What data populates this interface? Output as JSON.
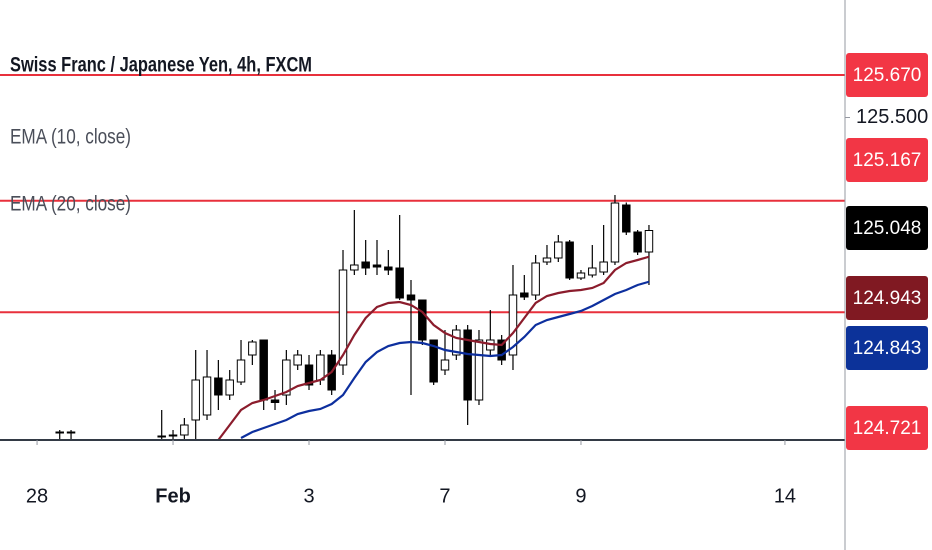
{
  "chart_data": {
    "type": "candlestick",
    "title": "Swiss Franc / Japanese Yen, 4h, FXCM",
    "x": [
      2,
      3,
      11,
      12,
      13,
      14,
      15,
      16,
      17,
      18,
      19,
      20,
      21,
      22,
      23,
      24,
      25,
      26,
      27,
      28,
      29,
      30,
      31,
      32,
      33,
      34,
      35,
      36,
      37,
      38,
      39,
      40,
      41,
      42,
      43,
      44,
      45,
      46,
      47,
      48,
      49,
      50,
      51,
      52,
      53,
      54
    ],
    "open": [
      124.238,
      124.242,
      124.222,
      124.226,
      124.23,
      124.29,
      124.31,
      124.458,
      124.39,
      124.442,
      124.55,
      124.61,
      124.37,
      124.39,
      124.51,
      124.51,
      124.45,
      124.55,
      124.51,
      124.89,
      124.922,
      124.91,
      124.902,
      124.898,
      124.79,
      124.77,
      124.61,
      124.49,
      124.55,
      124.65,
      124.37,
      124.57,
      124.61,
      124.55,
      124.798,
      124.79,
      124.922,
      124.938,
      125.002,
      124.858,
      124.87,
      124.882,
      124.922,
      125.15,
      125.042,
      124.962
    ],
    "high": [
      124.25,
      124.25,
      124.33,
      124.25,
      124.298,
      124.57,
      124.57,
      124.53,
      124.49,
      124.61,
      124.61,
      124.61,
      124.41,
      124.57,
      124.57,
      124.55,
      124.57,
      124.57,
      124.97,
      125.13,
      125.01,
      125.01,
      124.97,
      125.11,
      124.85,
      124.77,
      124.61,
      124.65,
      124.67,
      124.67,
      124.65,
      124.73,
      124.63,
      124.91,
      124.87,
      124.95,
      124.99,
      125.03,
      125.01,
      124.89,
      124.99,
      125.07,
      125.19,
      125.16,
      125.05,
      125.07
    ],
    "low": [
      124.21,
      124.21,
      124.21,
      124.21,
      124.21,
      124.21,
      124.29,
      124.33,
      124.37,
      124.43,
      124.51,
      124.33,
      124.33,
      124.35,
      124.49,
      124.41,
      124.43,
      124.39,
      124.47,
      124.87,
      124.87,
      124.87,
      124.87,
      124.77,
      124.39,
      124.59,
      124.43,
      124.47,
      124.53,
      124.27,
      124.35,
      124.55,
      124.51,
      124.49,
      124.77,
      124.77,
      124.91,
      124.922,
      124.85,
      124.85,
      124.86,
      124.87,
      124.91,
      125.03,
      124.95,
      124.83
    ],
    "close": [
      124.242,
      124.238,
      124.226,
      124.23,
      124.27,
      124.45,
      124.462,
      124.39,
      124.45,
      124.53,
      124.602,
      124.37,
      124.36,
      124.53,
      124.55,
      124.43,
      124.55,
      124.41,
      124.89,
      124.91,
      124.898,
      124.902,
      124.89,
      124.778,
      124.77,
      124.61,
      124.442,
      124.53,
      124.65,
      124.37,
      124.61,
      124.61,
      124.53,
      124.79,
      124.782,
      124.918,
      124.938,
      125.002,
      124.858,
      124.878,
      124.898,
      124.922,
      125.158,
      125.042,
      124.962,
      125.048
    ],
    "up_color": "#ffffff",
    "down_color": "#000000",
    "series": [
      {
        "name": "EMA (10, close)",
        "color": "#8b1c2c",
        "values": [
          null,
          null,
          null,
          null,
          null,
          null,
          null,
          124.21,
          124.27,
          124.33,
          124.358,
          124.37,
          124.386,
          124.402,
          124.426,
          124.438,
          124.45,
          124.482,
          124.55,
          124.63,
          124.698,
          124.742,
          124.758,
          124.762,
          124.75,
          124.722,
          124.67,
          124.638,
          124.618,
          124.61,
          124.602,
          124.594,
          124.59,
          124.638,
          124.698,
          124.758,
          124.786,
          124.798,
          124.806,
          124.81,
          124.818,
          124.838,
          124.89,
          124.918,
          124.93,
          124.943
        ]
      },
      {
        "name": "EMA (20, close)",
        "color": "#0d2f9e",
        "values": [
          null,
          null,
          null,
          null,
          null,
          null,
          null,
          null,
          null,
          124.218,
          124.242,
          124.258,
          124.274,
          124.29,
          124.314,
          124.326,
          124.334,
          124.354,
          124.39,
          124.458,
          124.522,
          124.562,
          124.586,
          124.598,
          124.602,
          124.598,
          124.586,
          124.57,
          124.562,
          124.554,
          124.55,
          124.546,
          124.55,
          124.582,
          124.622,
          124.67,
          124.69,
          124.702,
          124.714,
          124.726,
          124.746,
          124.77,
          124.794,
          124.81,
          124.83,
          124.843
        ]
      }
    ],
    "levels": [
      {
        "value": 125.67,
        "label": "125.670"
      },
      {
        "value": 125.167,
        "label": "125.167"
      },
      {
        "value": 124.721,
        "label": "124.721"
      }
    ],
    "level_color": "#e8303c",
    "price_labels": [
      {
        "value": 125.67,
        "label": "125.670",
        "color": "#f23645"
      },
      {
        "value": 125.167,
        "label": "125.167",
        "color": "#f23645"
      },
      {
        "value": 125.048,
        "label": "125.048",
        "color": "#000000"
      },
      {
        "value": 124.943,
        "label": "124.943",
        "color": "#801922"
      },
      {
        "value": 124.843,
        "label": "124.843",
        "color": "#0c3299"
      },
      {
        "value": 124.721,
        "label": "124.721",
        "color": "#f23645"
      }
    ],
    "xlim": [
      -3.27,
      71.3
    ],
    "ylim": [
      124.21,
      125.97
    ],
    "xticks": [
      {
        "value": 0,
        "label": "28"
      },
      {
        "value": 12,
        "label": "Feb"
      },
      {
        "value": 24,
        "label": "3"
      },
      {
        "value": 36,
        "label": "7"
      },
      {
        "value": 48,
        "label": "9"
      },
      {
        "value": 66,
        "label": "14"
      }
    ],
    "yticks": [
      {
        "value": 125.5,
        "label": "125.500"
      }
    ]
  }
}
